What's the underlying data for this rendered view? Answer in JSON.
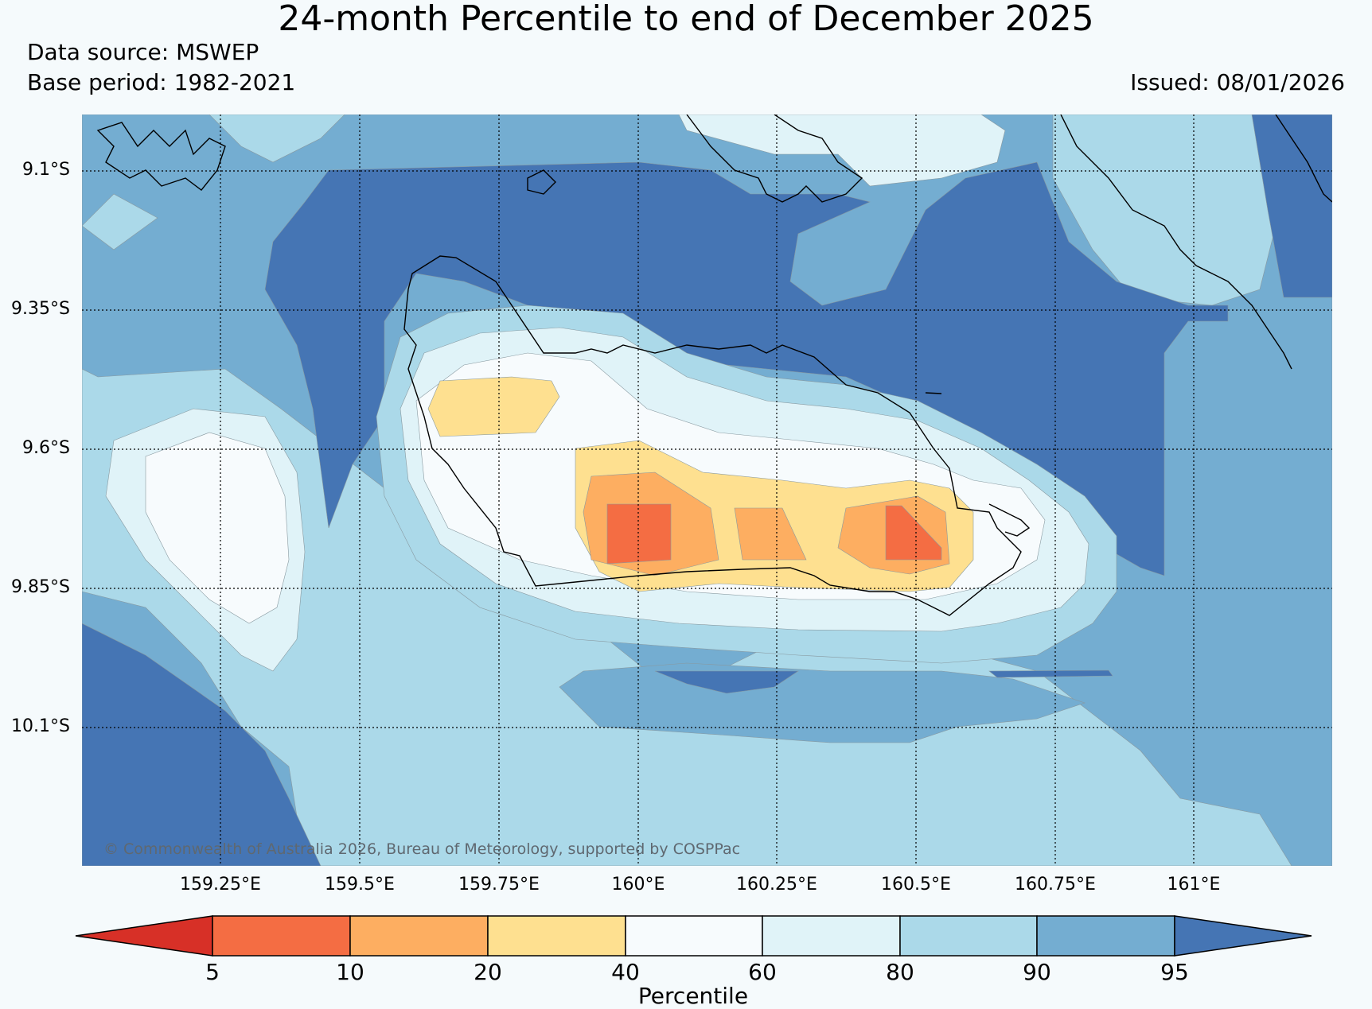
{
  "header": {
    "title": "24-month Percentile to end of December 2025",
    "data_source": "Data source: MSWEP",
    "base_period": "Base period: 1982-2021",
    "issued": "Issued: 08/01/2026"
  },
  "map": {
    "latitude_labels": [
      "9.1°S",
      "9.35°S",
      "9.6°S",
      "9.85°S",
      "10.1°S"
    ],
    "longitude_labels": [
      "159.25°E",
      "159.5°E",
      "159.75°E",
      "160°E",
      "160.25°E",
      "160.5°E",
      "160.75°E",
      "161°E"
    ],
    "copyright": "© Commonwealth of Australia 2026, Bureau of Meteorology, supported by COSPPac",
    "colors": {
      "below_5": "#d73027",
      "p5_10": "#f46d43",
      "p10_20": "#fdae61",
      "p20_40": "#fee090",
      "p40_60": "#f7fbfd",
      "p60_80": "#e0f3f8",
      "p80_90": "#abd9e9",
      "p90_95": "#74add1",
      "above_95": "#4575b4"
    }
  },
  "colorbar": {
    "title": "Percentile",
    "ticks": [
      "5",
      "10",
      "20",
      "40",
      "60",
      "80",
      "90",
      "95"
    ]
  }
}
